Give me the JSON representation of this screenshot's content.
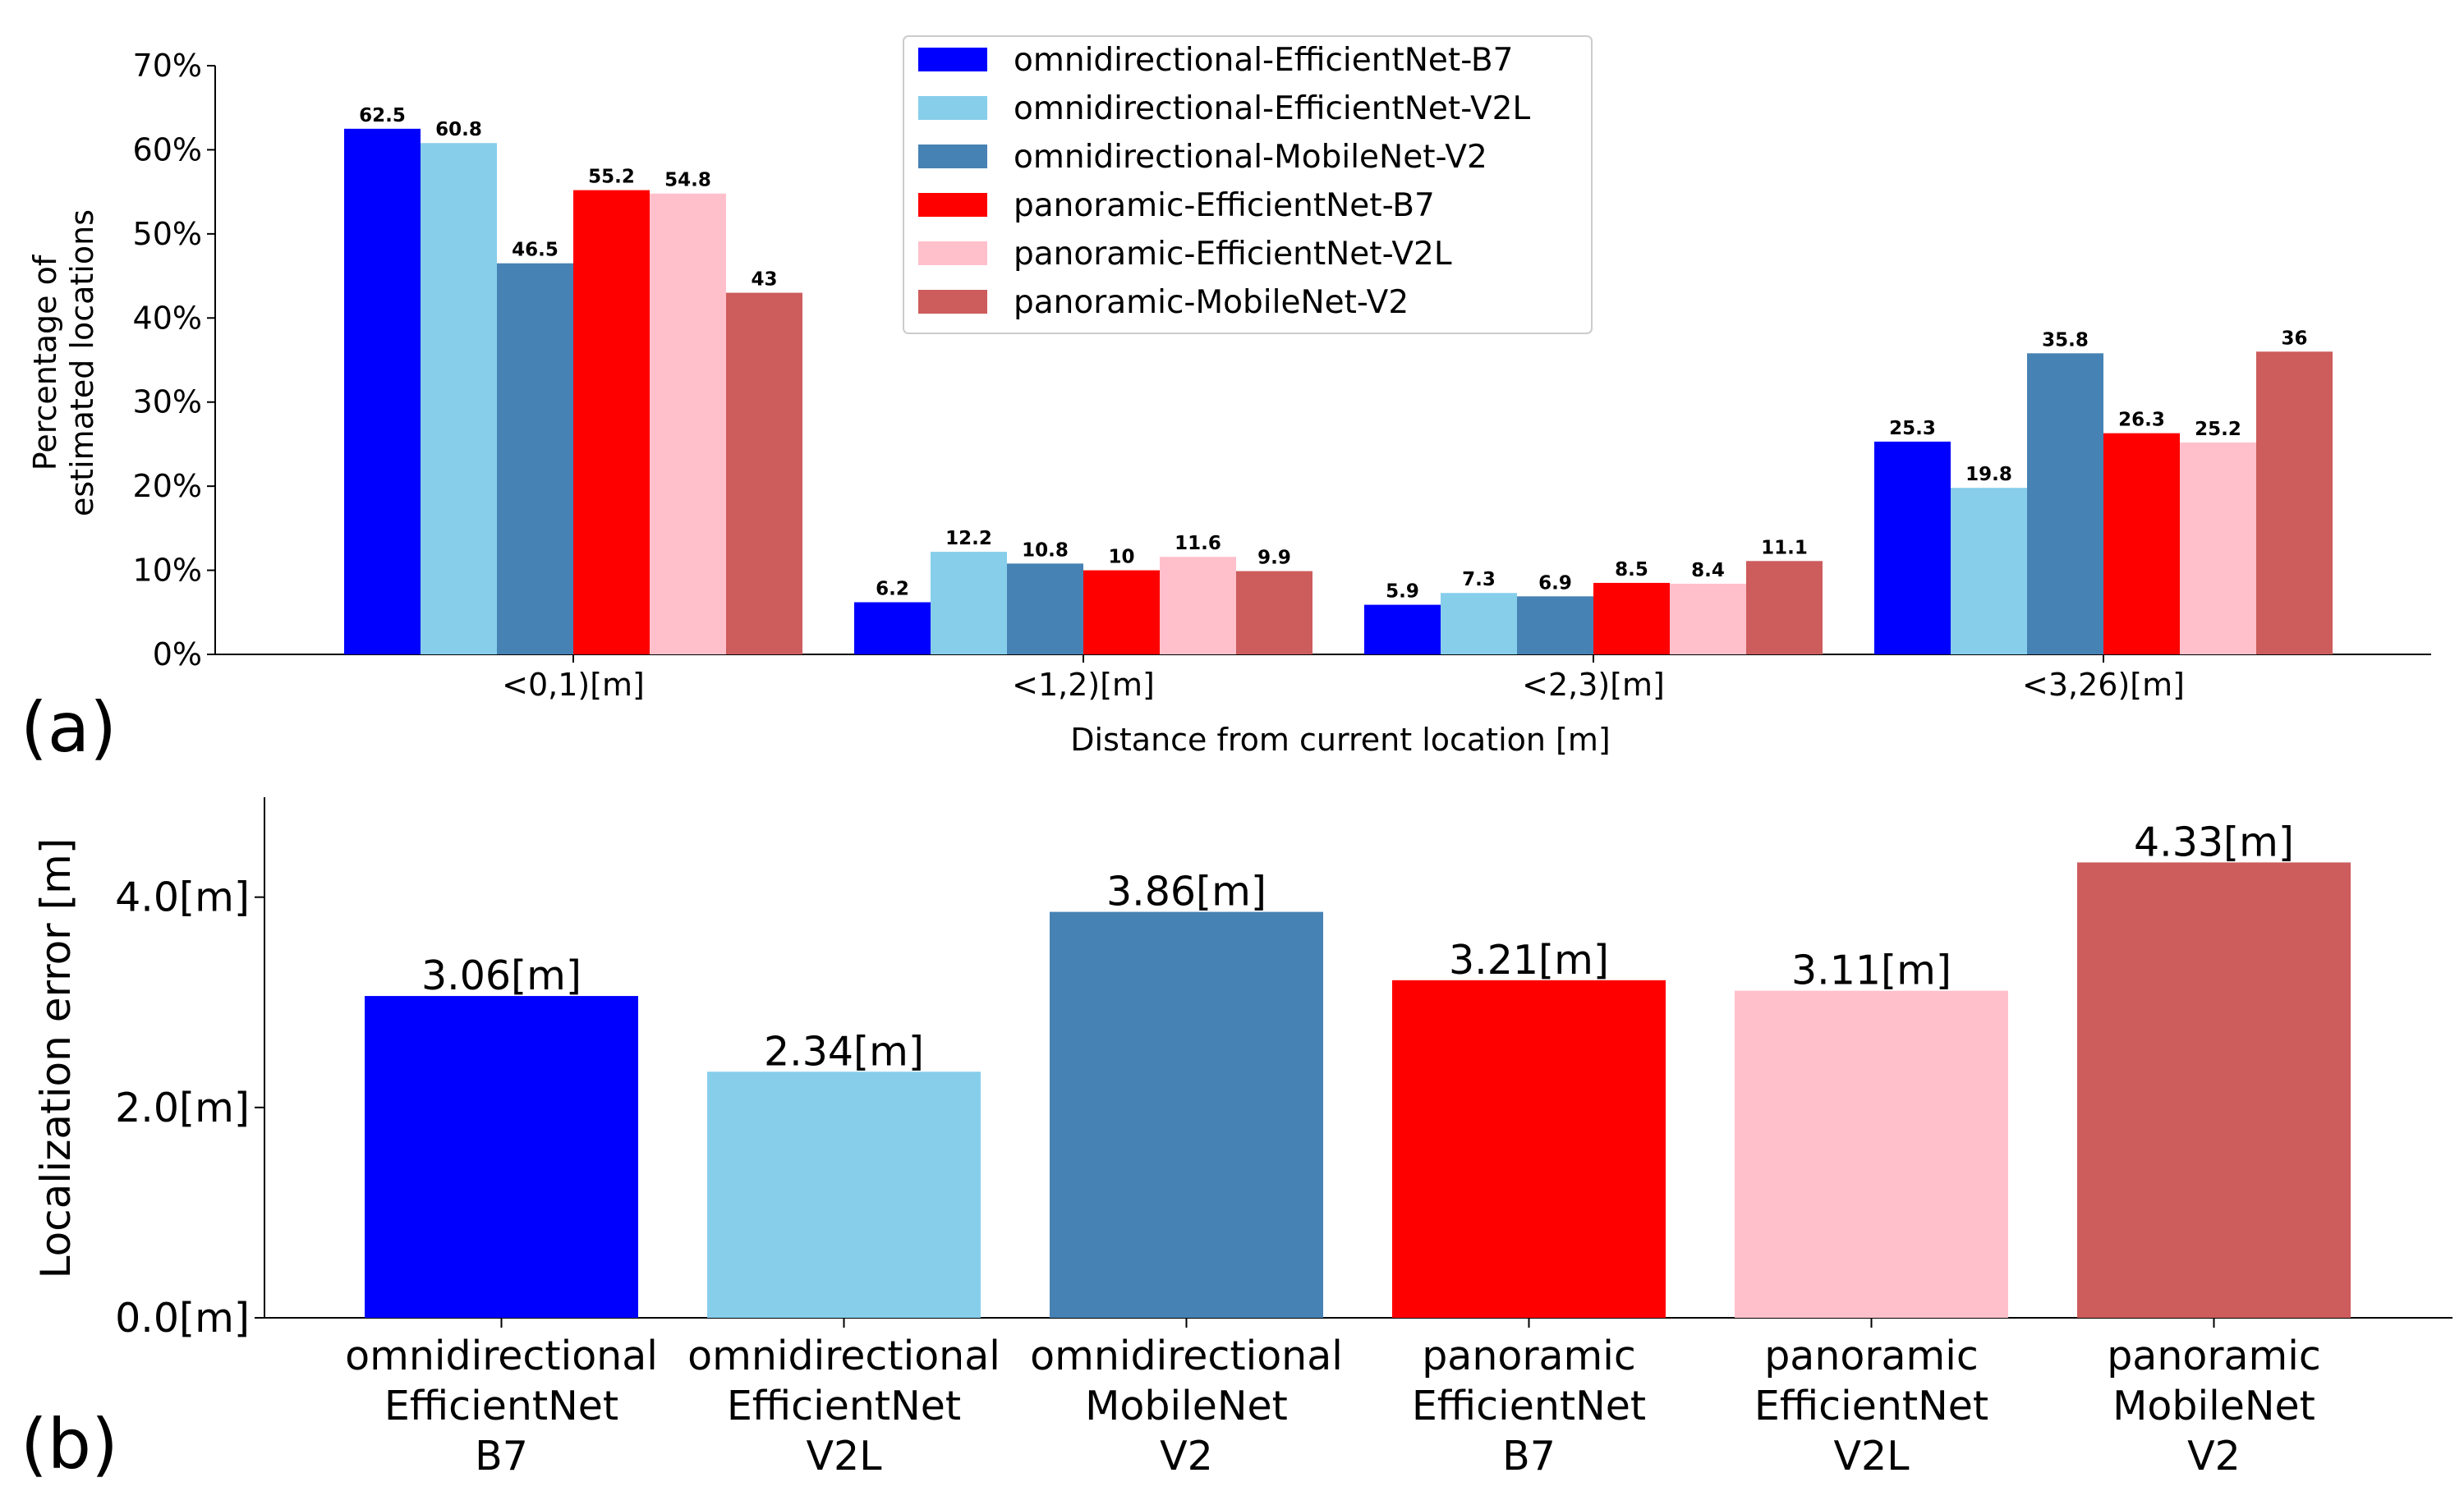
{
  "colors": {
    "omni_b7": "#0000FF",
    "omni_v2l": "#87CEEB",
    "omni_mnv2": "#4682B4",
    "pano_b7": "#FF0000",
    "pano_v2l": "#FFC0CB",
    "pano_mnv2": "#CD5C5C"
  },
  "panels": {
    "a_label": "(a)",
    "b_label": "(b)"
  },
  "chart_data": [
    {
      "type": "bar",
      "panel": "(a)",
      "categories": [
        "<0,1)[m]",
        "<1,2)[m]",
        "<2,3)[m]",
        "<3,26)[m]"
      ],
      "series": [
        {
          "name": "omnidirectional-EfficientNet-B7",
          "values": [
            62.5,
            6.2,
            5.9,
            25.3
          ],
          "labels": [
            "62.5",
            "6.2",
            "5.9",
            "25.3"
          ],
          "color": "#0000FF"
        },
        {
          "name": "omnidirectional-EfficientNet-V2L",
          "values": [
            60.8,
            12.2,
            7.3,
            19.8
          ],
          "labels": [
            "60.8",
            "12.2",
            "7.3",
            "19.8"
          ],
          "color": "#87CEEB"
        },
        {
          "name": "omnidirectional-MobileNet-V2",
          "values": [
            46.5,
            10.8,
            6.9,
            35.8
          ],
          "labels": [
            "46.5",
            "10.8",
            "6.9",
            "35.8"
          ],
          "color": "#4682B4"
        },
        {
          "name": "panoramic-EfficientNet-B7",
          "values": [
            55.2,
            10,
            8.5,
            26.3
          ],
          "labels": [
            "55.2",
            "10",
            "8.5",
            "26.3"
          ],
          "color": "#FF0000"
        },
        {
          "name": "panoramic-EfficientNet-V2L",
          "values": [
            54.8,
            11.6,
            8.4,
            25.2
          ],
          "labels": [
            "54.8",
            "11.6",
            "8.4",
            "25.2"
          ],
          "color": "#FFC0CB"
        },
        {
          "name": "panoramic-MobileNet-V2",
          "values": [
            43,
            9.9,
            11.1,
            36
          ],
          "labels": [
            "43",
            "9.9",
            "11.1",
            "36"
          ],
          "color": "#CD5C5C"
        }
      ],
      "xlabel": "Distance from current location [m]",
      "ylabel_lines": [
        "Percentage of",
        "estimated locations"
      ],
      "yticks": [
        "0%",
        "10%",
        "20%",
        "30%",
        "40%",
        "50%",
        "60%",
        "70%"
      ],
      "ylim": [
        0,
        70
      ],
      "legend": "top-center"
    },
    {
      "type": "bar",
      "panel": "(b)",
      "categories": [
        [
          "omnidirectional",
          "EfficientNet",
          "B7"
        ],
        [
          "omnidirectional",
          "EfficientNet",
          "V2L"
        ],
        [
          "omnidirectional",
          "MobileNet",
          "V2"
        ],
        [
          "panoramic",
          "EfficientNet",
          "B7"
        ],
        [
          "panoramic",
          "EfficientNet",
          "V2L"
        ],
        [
          "panoramic",
          "MobileNet",
          "V2"
        ]
      ],
      "values": [
        3.06,
        2.34,
        3.86,
        3.21,
        3.11,
        4.33
      ],
      "labels": [
        "3.06[m]",
        "2.34[m]",
        "3.86[m]",
        "3.21[m]",
        "3.11[m]",
        "4.33[m]"
      ],
      "colors": [
        "#0000FF",
        "#87CEEB",
        "#4682B4",
        "#FF0000",
        "#FFC0CB",
        "#CD5C5C"
      ],
      "ylabel": "Localization error [m]",
      "yticks": [
        "0.0[m]",
        "2.0[m]",
        "4.0[m]"
      ],
      "ytick_values": [
        0,
        2,
        4
      ],
      "ylim": [
        0,
        4.95
      ]
    }
  ]
}
